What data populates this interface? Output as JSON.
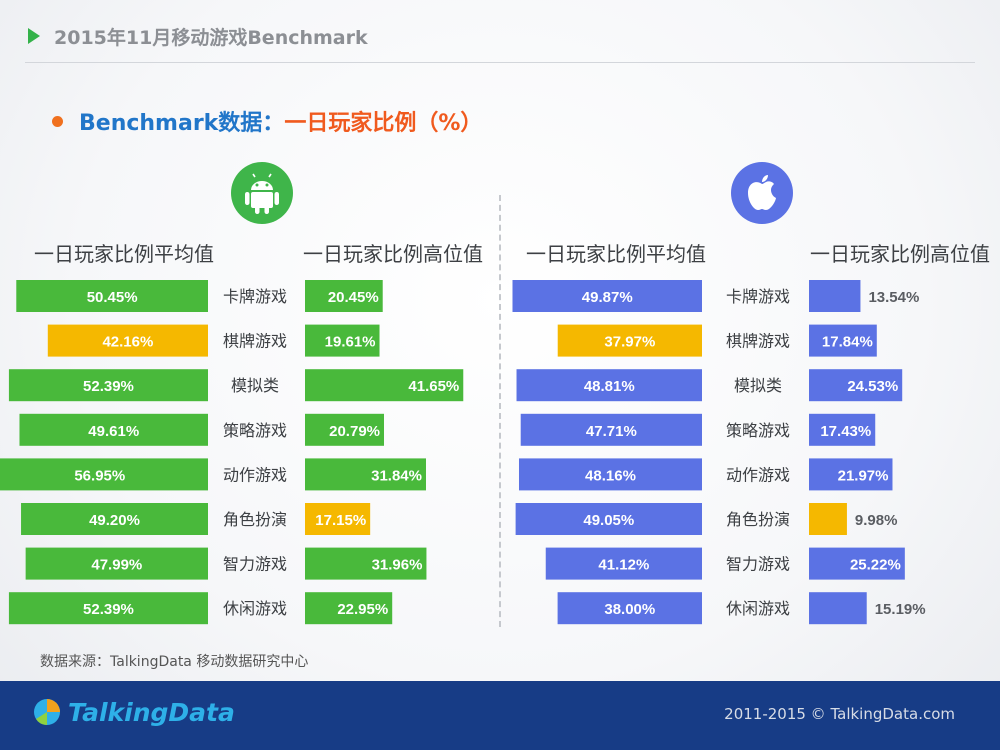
{
  "header": {
    "title": "2015年11月移动游戏Benchmark"
  },
  "subtitle": {
    "part1": "Benchmark数据：",
    "part2": "一日玩家比例（%）"
  },
  "column_headers": {
    "android_avg": "一日玩家比例平均值",
    "android_high": "一日玩家比例高位值",
    "ios_avg": "一日玩家比例平均值",
    "ios_high": "一日玩家比例高位值"
  },
  "icons": {
    "android": "android-icon",
    "ios": "apple-icon"
  },
  "colors": {
    "android_bar": "#49b93b",
    "ios_bar": "#5b72e4",
    "highlight": "#f5b800",
    "label": "#3d4044"
  },
  "chart_data": {
    "type": "bar",
    "categories": [
      "卡牌游戏",
      "棋牌游戏",
      "模拟类",
      "策略游戏",
      "动作游戏",
      "角色扮演",
      "智力游戏",
      "休闲游戏"
    ],
    "panels": [
      {
        "platform": "android",
        "average": {
          "values": [
            50.45,
            42.16,
            52.39,
            49.61,
            56.95,
            49.2,
            47.99,
            52.39
          ],
          "labels": [
            "50.45%",
            "42.16%",
            "52.39%",
            "49.61%",
            "56.95%",
            "49.20%",
            "47.99%",
            "52.39%"
          ],
          "highlight_index": 1
        },
        "high": {
          "values": [
            20.45,
            19.61,
            41.65,
            20.79,
            31.84,
            17.15,
            31.96,
            22.95
          ],
          "labels": [
            "20.45%",
            "19.61%",
            "41.65%",
            "20.79%",
            "31.84%",
            "17.15%",
            "31.96%",
            "22.95%"
          ],
          "highlight_index": 5
        }
      },
      {
        "platform": "ios",
        "average": {
          "values": [
            49.87,
            37.97,
            48.81,
            47.71,
            48.16,
            49.05,
            41.12,
            38.0
          ],
          "labels": [
            "49.87%",
            "37.97%",
            "48.81%",
            "47.71%",
            "48.16%",
            "49.05%",
            "41.12%",
            "38.00%"
          ],
          "highlight_index": 1
        },
        "high": {
          "values": [
            13.54,
            17.84,
            24.53,
            17.43,
            21.97,
            9.98,
            25.22,
            15.19
          ],
          "labels": [
            "13.54%",
            "17.84%",
            "24.53%",
            "17.43%",
            "21.97%",
            "9.98%",
            "25.22%",
            "15.19%"
          ],
          "highlight_index": 5
        }
      }
    ]
  },
  "source": "数据来源：TalkingData 移动数据研究中心",
  "footer": {
    "logo": "TalkingData",
    "copyright": "2011-2015 © TalkingData.com"
  }
}
